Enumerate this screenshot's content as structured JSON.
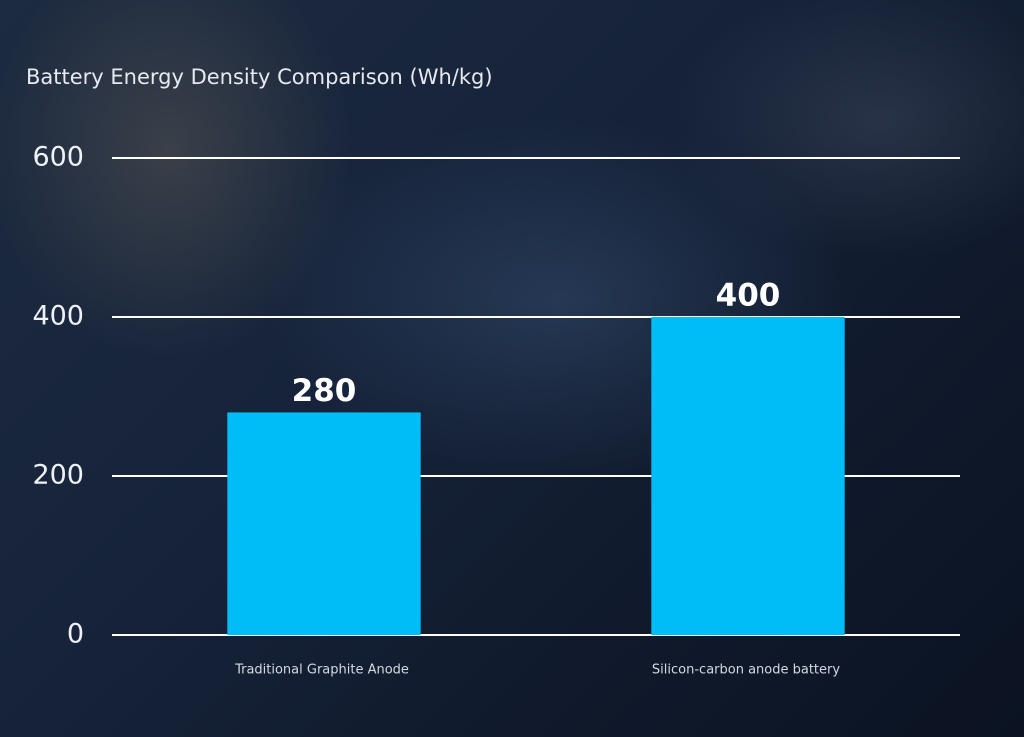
{
  "chart_data": {
    "type": "bar",
    "title": "Battery Energy Density Comparison (Wh/kg)",
    "categories": [
      "Traditional Graphite Anode",
      "Silicon-carbon anode battery"
    ],
    "values": [
      280,
      400
    ],
    "color": "#00bdf7",
    "ylim": [
      0,
      600
    ],
    "yticks": [
      0,
      200,
      400,
      600
    ],
    "grid": true
  }
}
